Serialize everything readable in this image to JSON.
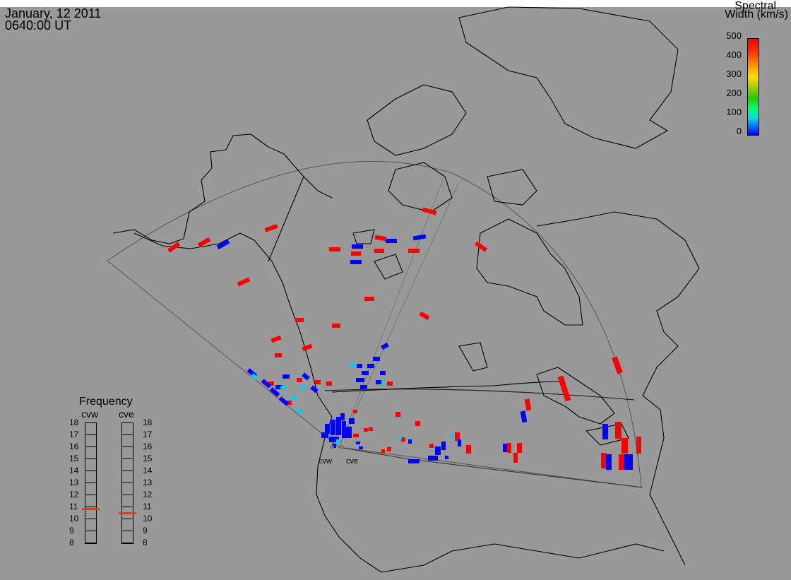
{
  "header": {
    "date": "January, 12 2011",
    "time": "0640:00 UT"
  },
  "colorbar": {
    "title_line1": "Spectral",
    "title_line2": "Width (km/s)",
    "ticks": [
      "500",
      "400",
      "300",
      "200",
      "100",
      "0"
    ],
    "min": 0,
    "max": 500
  },
  "frequency_panel": {
    "title": "Frequency",
    "radars": [
      "cvw",
      "cve"
    ],
    "ticks": [
      "18",
      "17",
      "16",
      "15",
      "14",
      "13",
      "12",
      "11",
      "10",
      "9",
      "8"
    ],
    "cvw_value_mhz": 10.8,
    "cve_value_mhz": 10.5,
    "marker_color": "#ff3300"
  },
  "radar_sites": {
    "west": "cvw",
    "east": "cve"
  },
  "colors": {
    "background": "#999999",
    "high": "#ff0000",
    "low": "#0000ff",
    "mid": "#00ccee"
  }
}
